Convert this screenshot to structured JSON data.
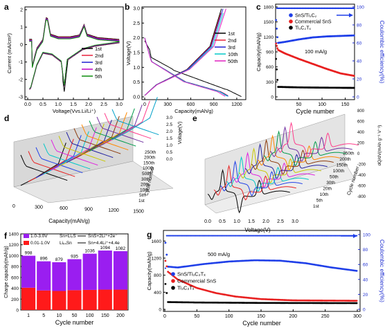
{
  "panel_labels": [
    "a",
    "b",
    "c",
    "d",
    "e",
    "f",
    "g"
  ],
  "chart_data": [
    {
      "panel": "a",
      "type": "line",
      "xlabel": "Voltage(Vvs.Li/Li⁺)",
      "ylabel": "Current (mA/cm²)",
      "xlim": [
        0,
        3.0
      ],
      "ylim": [
        -3,
        2
      ],
      "xticks": [
        "0.0",
        "0.5",
        "1.0",
        "1.5",
        "2.0",
        "2.5",
        "3.0"
      ],
      "yticks": [
        "2",
        "1",
        "0",
        "-1",
        "-2",
        "-3"
      ],
      "legend": "right",
      "series": [
        {
          "name": "1st",
          "color": "#000000"
        },
        {
          "name": "2nd",
          "color": "#e8213a"
        },
        {
          "name": "3rd",
          "color": "#1f1fd0"
        },
        {
          "name": "4th",
          "color": "#c000c0"
        },
        {
          "name": "5th",
          "color": "#0a8a0a"
        }
      ],
      "anodic": [
        [
          0.15,
          -1.2
        ],
        [
          0.3,
          -0.2
        ],
        [
          0.5,
          0.3
        ],
        [
          0.6,
          1.55
        ],
        [
          0.65,
          1.5
        ],
        [
          0.75,
          0.6
        ],
        [
          1.0,
          0.45
        ],
        [
          1.4,
          0.45
        ],
        [
          1.7,
          0.55
        ],
        [
          1.85,
          1.15
        ],
        [
          1.95,
          0.6
        ],
        [
          2.3,
          0.4
        ],
        [
          3.0,
          0.3
        ]
      ],
      "cathodic": [
        [
          3.0,
          0.1
        ],
        [
          2.2,
          -0.1
        ],
        [
          1.8,
          -0.3
        ],
        [
          1.3,
          -0.9
        ],
        [
          1.2,
          -2.4
        ],
        [
          1.1,
          -1.0
        ],
        [
          0.8,
          -0.6
        ],
        [
          0.5,
          -0.5
        ],
        [
          0.3,
          -1.2
        ],
        [
          0.1,
          -2.5
        ],
        [
          0.05,
          -2.6
        ]
      ]
    },
    {
      "panel": "b",
      "type": "line",
      "xlabel": "Capacity(mAh/g)",
      "ylabel": "Voltage(V)",
      "xlim": [
        0,
        1300
      ],
      "ylim": [
        0,
        3.0
      ],
      "xticks": [
        "0",
        "300",
        "600",
        "900",
        "1200"
      ],
      "yticks": [
        "3.0",
        "2.5",
        "2.0",
        "1.5",
        "1.0",
        "0.5",
        "0.0"
      ],
      "legend": "right",
      "series": [
        {
          "name": "1st",
          "color": "#000000",
          "discharge_end": 1260,
          "charge_end": 1000
        },
        {
          "name": "2nd",
          "color": "#e8213a",
          "discharge_end": 1100,
          "charge_end": 1010
        },
        {
          "name": "3rd",
          "color": "#1f1fd0",
          "discharge_end": 1090,
          "charge_end": 1020
        },
        {
          "name": "10th",
          "color": "#00c8c8",
          "discharge_end": 1080,
          "charge_end": 1040
        },
        {
          "name": "50th",
          "color": "#e020c0",
          "discharge_end": 1050,
          "charge_end": 1060
        }
      ]
    },
    {
      "panel": "c",
      "type": "scatter",
      "xlabel": "Cycle number",
      "ylabel": "Capacity(mAh/g)",
      "ylabel_right": "Coulombic efficiency(%)",
      "annotation": "100 mA/g",
      "xlim": [
        0,
        170
      ],
      "ylim": [
        0,
        1800
      ],
      "ylim_right": [
        0,
        100
      ],
      "xticks": [
        "50",
        "100",
        "150"
      ],
      "yticks": [
        "0",
        "300",
        "600",
        "900",
        "1200",
        "1500",
        "1800"
      ],
      "yticks_right": [
        "0",
        "20",
        "40",
        "60",
        "80",
        "100"
      ],
      "legend": "top-right",
      "series": [
        {
          "name": "SnS/Ti₃C₂",
          "color": "#1f3fe8",
          "points": [
            [
              0,
              1650
            ],
            [
              5,
              1080
            ],
            [
              20,
              1100
            ],
            [
              50,
              1150
            ],
            [
              80,
              1190
            ],
            [
              110,
              1210
            ],
            [
              140,
              1220
            ],
            [
              170,
              1230
            ]
          ]
        },
        {
          "name": "Commercial SnS",
          "color": "#e82020",
          "points": [
            [
              0,
              1100
            ],
            [
              5,
              940
            ],
            [
              20,
              870
            ],
            [
              50,
              760
            ],
            [
              80,
              660
            ],
            [
              110,
              560
            ],
            [
              140,
              470
            ],
            [
              170,
              420
            ]
          ]
        },
        {
          "name": "Ti₃C₂Tₓ",
          "color": "#000000",
          "points": [
            [
              0,
              900
            ],
            [
              5,
              200
            ],
            [
              50,
              190
            ],
            [
              100,
              185
            ],
            [
              170,
              180
            ]
          ]
        }
      ]
    },
    {
      "panel": "d",
      "type": "line",
      "xlabel": "Capacity(mAh/g)",
      "ylabel": "Voltage(V)",
      "zlabel": "Cycle number",
      "xticks": [
        "0",
        "300",
        "600",
        "900",
        "1200",
        "1500"
      ],
      "yticks": [
        "0.0",
        "0.5",
        "1.0",
        "1.5",
        "2.0",
        "2.5",
        "3.0"
      ],
      "zticks": [
        "1st",
        "5th",
        "10th",
        "20th",
        "30th",
        "50th",
        "100th",
        "150th",
        "200th",
        "250th"
      ]
    },
    {
      "panel": "e",
      "type": "line",
      "xlabel": "Voltage(V)",
      "ylabel": "dQ/dV(mAh g⁻¹ V⁻¹)",
      "zlabel": "Cycle number",
      "xticks": [
        "0.0",
        "0.5",
        "1.0",
        "1.5",
        "2.0",
        "2.5",
        "3.0"
      ],
      "yticks": [
        "-800",
        "-600",
        "-400",
        "-200",
        "0",
        "200",
        "400",
        "600",
        "800"
      ],
      "zticks": [
        "1st",
        "5th",
        "10th",
        "20th",
        "30th",
        "50th",
        "100th",
        "150th",
        "200th",
        "250th"
      ]
    },
    {
      "panel": "f",
      "type": "bar",
      "xlabel": "Cycle number",
      "ylabel": "Charge capacity(mAh/g)",
      "categories": [
        "1",
        "5",
        "10",
        "50",
        "100",
        "150",
        "200"
      ],
      "ylim": [
        0,
        1400
      ],
      "yticks": [
        "0",
        "200",
        "400",
        "600",
        "800",
        "1000",
        "1200",
        "1400"
      ],
      "legend": "top-left",
      "series": [
        {
          "name": "0.01-1.0V",
          "color": "#ff1a1a",
          "values": [
            410,
            360,
            350,
            365,
            370,
            375,
            375
          ]
        },
        {
          "name": "1.0-3.0V",
          "color": "#9a1ef0",
          "values": [
            588,
            536,
            529,
            570,
            666,
            719,
            707
          ]
        }
      ],
      "totals": [
        "998",
        "896",
        "879",
        "935",
        "1036",
        "1094",
        "1082"
      ],
      "legend_reactions": [
        {
          "left": "Sn+Li₂S",
          "right": "SnS+2Li⁺+2e⁻"
        },
        {
          "left": "Liₓ₄Sn",
          "right": "Sn+4.4Li⁺+4.4e"
        }
      ]
    },
    {
      "panel": "g",
      "type": "scatter",
      "xlabel": "Cycle number",
      "ylabel": "Capacity(mAh/g)",
      "ylabel_right": "Coulombic efficiency(%)",
      "annotation": "500 mA/g",
      "xlim": [
        0,
        300
      ],
      "ylim": [
        0,
        1800
      ],
      "ylim_right": [
        0,
        100
      ],
      "xticks": [
        "0",
        "50",
        "100",
        "150",
        "200",
        "250",
        "300"
      ],
      "yticks": [
        "0",
        "400",
        "800",
        "1200",
        "1600"
      ],
      "yticks_right": [
        "0",
        "20",
        "40",
        "60",
        "80",
        "100"
      ],
      "legend": "bottom-left",
      "series": [
        {
          "name": "SnS/Ti₃C₂Tₓ",
          "color": "#1f3fe8",
          "points": [
            [
              0,
              1700
            ],
            [
              5,
              1000
            ],
            [
              20,
              980
            ],
            [
              60,
              1060
            ],
            [
              100,
              1120
            ],
            [
              140,
              1150
            ],
            [
              180,
              1140
            ],
            [
              220,
              1080
            ],
            [
              260,
              980
            ],
            [
              300,
              900
            ]
          ]
        },
        {
          "name": "Commercial SnS",
          "color": "#e82020",
          "points": [
            [
              0,
              1200
            ],
            [
              5,
              880
            ],
            [
              20,
              700
            ],
            [
              50,
              500
            ],
            [
              80,
              380
            ],
            [
              110,
              300
            ],
            [
              150,
              240
            ],
            [
              200,
              210
            ],
            [
              300,
              200
            ]
          ]
        },
        {
          "name": "Ti₃C₂Tₓ",
          "color": "#000000",
          "points": [
            [
              0,
              700
            ],
            [
              5,
              170
            ],
            [
              50,
              160
            ],
            [
              150,
              150
            ],
            [
              300,
              145
            ]
          ]
        }
      ]
    }
  ]
}
